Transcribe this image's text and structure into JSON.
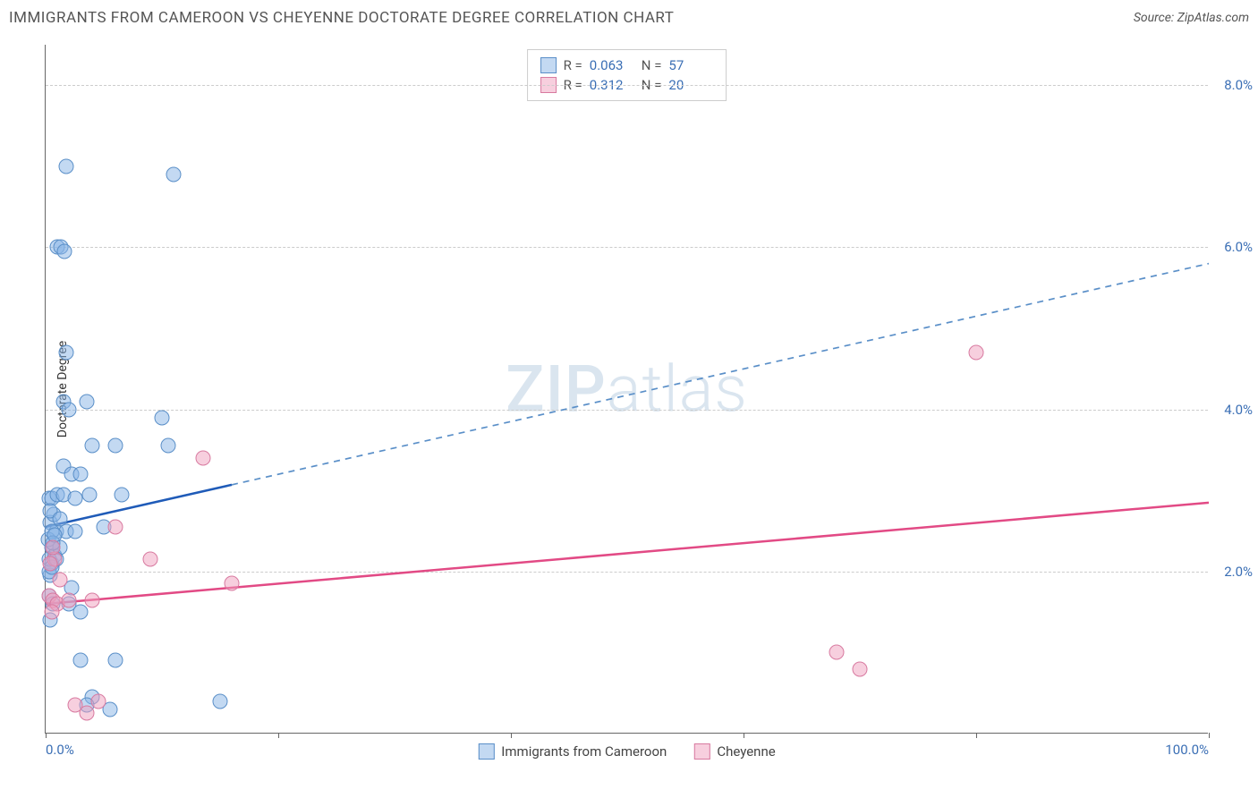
{
  "title": "IMMIGRANTS FROM CAMEROON VS CHEYENNE DOCTORATE DEGREE CORRELATION CHART",
  "source": "Source: ZipAtlas.com",
  "watermark": {
    "bold": "ZIP",
    "light": "atlas"
  },
  "chart": {
    "type": "scatter",
    "y_axis_label": "Doctorate Degree",
    "xlim": [
      0,
      100
    ],
    "ylim": [
      0,
      8.5
    ],
    "x_ticks": [
      {
        "pos": 0,
        "label": "0.0%"
      },
      {
        "pos": 20,
        "label": ""
      },
      {
        "pos": 40,
        "label": ""
      },
      {
        "pos": 60,
        "label": ""
      },
      {
        "pos": 80,
        "label": ""
      },
      {
        "pos": 100,
        "label": "100.0%"
      }
    ],
    "y_ticks": [
      {
        "pos": 2.0,
        "label": "2.0%"
      },
      {
        "pos": 4.0,
        "label": "4.0%"
      },
      {
        "pos": 6.0,
        "label": "6.0%"
      },
      {
        "pos": 8.0,
        "label": "8.0%"
      }
    ],
    "grid_color": "#cccccc",
    "background_color": "#ffffff",
    "series": [
      {
        "name": "Immigrants from Cameroon",
        "color_fill": "rgba(135,180,230,0.5)",
        "color_stroke": "#5a8fc8",
        "marker_size": 17,
        "R": "0.063",
        "N": "57",
        "trend": {
          "x1": 0,
          "y1": 2.55,
          "x2": 100,
          "y2": 5.8,
          "solid_until_x": 16,
          "solid_color": "#1f5bb8",
          "dash_color": "#5a8fc8",
          "width": 2.5
        },
        "points": [
          [
            0.3,
            2.9
          ],
          [
            0.4,
            2.6
          ],
          [
            0.5,
            2.3
          ],
          [
            0.6,
            2.3
          ],
          [
            0.5,
            2.1
          ],
          [
            0.4,
            1.95
          ],
          [
            0.3,
            2.0
          ],
          [
            0.8,
            2.2
          ],
          [
            0.9,
            2.5
          ],
          [
            1.2,
            2.3
          ],
          [
            0.5,
            2.9
          ],
          [
            0.7,
            2.7
          ],
          [
            1.0,
            2.95
          ],
          [
            1.5,
            2.95
          ],
          [
            2.5,
            2.9
          ],
          [
            3.8,
            2.95
          ],
          [
            6.5,
            2.95
          ],
          [
            1.5,
            3.3
          ],
          [
            2.2,
            3.2
          ],
          [
            3.0,
            3.2
          ],
          [
            4.0,
            3.55
          ],
          [
            6.0,
            3.55
          ],
          [
            10.0,
            3.9
          ],
          [
            10.5,
            3.55
          ],
          [
            1.5,
            4.1
          ],
          [
            2.0,
            4.0
          ],
          [
            3.5,
            4.1
          ],
          [
            1.8,
            4.7
          ],
          [
            1.0,
            6.0
          ],
          [
            1.3,
            6.0
          ],
          [
            1.6,
            5.95
          ],
          [
            1.8,
            7.0
          ],
          [
            11.0,
            6.9
          ],
          [
            6.0,
            0.9
          ],
          [
            3.0,
            0.9
          ],
          [
            4.0,
            0.45
          ],
          [
            5.5,
            0.3
          ],
          [
            3.5,
            0.35
          ],
          [
            15.0,
            0.4
          ],
          [
            2.0,
            1.6
          ],
          [
            2.2,
            1.8
          ],
          [
            3.0,
            1.5
          ],
          [
            0.3,
            1.7
          ],
          [
            0.6,
            1.6
          ],
          [
            0.4,
            1.4
          ],
          [
            0.2,
            2.4
          ],
          [
            0.5,
            2.5
          ],
          [
            1.8,
            2.5
          ],
          [
            2.5,
            2.5
          ],
          [
            0.3,
            2.15
          ],
          [
            0.5,
            2.05
          ],
          [
            0.6,
            2.35
          ],
          [
            0.9,
            2.15
          ],
          [
            5.0,
            2.55
          ],
          [
            0.4,
            2.75
          ],
          [
            0.8,
            2.45
          ],
          [
            1.2,
            2.65
          ]
        ]
      },
      {
        "name": "Cheyenne",
        "color_fill": "rgba(240,160,190,0.5)",
        "color_stroke": "#d87aa0",
        "marker_size": 17,
        "R": "0.312",
        "N": "20",
        "trend": {
          "x1": 0,
          "y1": 1.6,
          "x2": 100,
          "y2": 2.85,
          "solid_until_x": 100,
          "solid_color": "#e24a85",
          "dash_color": "#e24a85",
          "width": 2.5
        },
        "points": [
          [
            0.3,
            1.7
          ],
          [
            0.6,
            1.65
          ],
          [
            1.0,
            1.6
          ],
          [
            2.0,
            1.65
          ],
          [
            4.0,
            1.65
          ],
          [
            6.0,
            2.55
          ],
          [
            13.5,
            3.4
          ],
          [
            16.0,
            1.85
          ],
          [
            9.0,
            2.15
          ],
          [
            2.5,
            0.35
          ],
          [
            3.5,
            0.25
          ],
          [
            4.5,
            0.4
          ],
          [
            0.8,
            2.15
          ],
          [
            0.6,
            2.3
          ],
          [
            0.4,
            2.1
          ],
          [
            68.0,
            1.0
          ],
          [
            70.0,
            0.8
          ],
          [
            80.0,
            4.7
          ],
          [
            1.2,
            1.9
          ],
          [
            0.5,
            1.5
          ]
        ]
      }
    ]
  },
  "legend_bottom": [
    {
      "swatch": "blue",
      "label": "Immigrants from Cameroon"
    },
    {
      "swatch": "pink",
      "label": "Cheyenne"
    }
  ]
}
